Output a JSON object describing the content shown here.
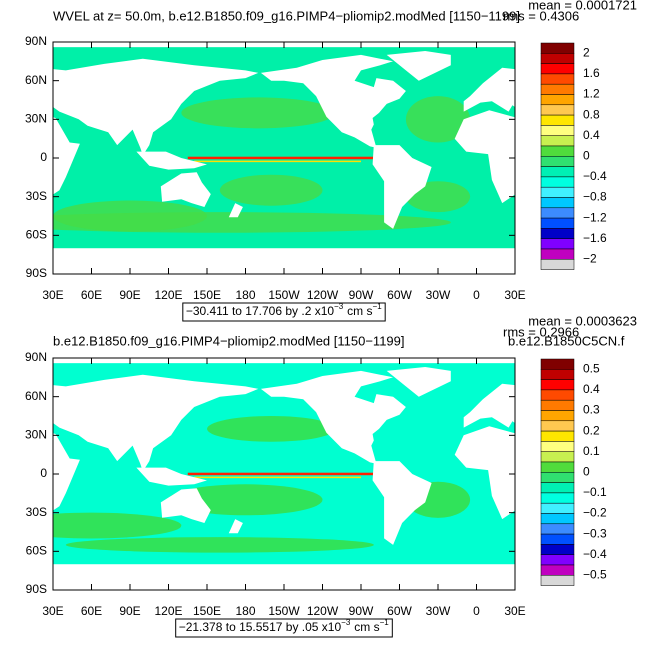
{
  "panels": [
    {
      "title": "WVEL at z=  50.0m, b.e12.B1850.f09_g16.PIMP4−pliomip2.modMed [1150−1199]",
      "right_title": null,
      "mean": "mean = 0.0001721",
      "rms": "rms = 0.4306",
      "lat_labels": [
        "90N",
        "60N",
        "30N",
        "0",
        "30S",
        "60S",
        "90S"
      ],
      "lon_labels": [
        "30E",
        "60E",
        "90E",
        "120E",
        "150E",
        "180",
        "150W",
        "120W",
        "90W",
        "60W",
        "30W",
        "0",
        "30E"
      ],
      "info": {
        "range": "−30.411 to 17.706 by .2 x10",
        "exp": "−3",
        "unit": "cm s",
        "unit_exp": "−1"
      },
      "colorbar_labels": [
        "2",
        "1.6",
        "1.2",
        "0.8",
        "0.4",
        "0",
        "−0.4",
        "−0.8",
        "−1.2",
        "−1.6",
        "−2"
      ]
    },
    {
      "title": "b.e12.B1850.f09_g16.PIMP4−pliomip2.modMed [1150−1199]",
      "right_title": "b.e12.B1850C5CN.f",
      "mean": "mean = 0.0003623",
      "rms": "rms = 0.2966",
      "lat_labels": [
        "90N",
        "60N",
        "30N",
        "0",
        "30S",
        "60S",
        "90S"
      ],
      "lon_labels": [
        "30E",
        "60E",
        "90E",
        "120E",
        "150E",
        "180",
        "150W",
        "120W",
        "90W",
        "60W",
        "30W",
        "0",
        "30E"
      ],
      "info": {
        "range": "−21.378 to 15.5517 by .05 x10",
        "exp": "−3",
        "unit": "cm s",
        "unit_exp": "−1"
      },
      "colorbar_labels": [
        "0.5",
        "0.4",
        "0.3",
        "0.2",
        "0.1",
        "0",
        "−0.1",
        "−0.2",
        "−0.3",
        "−0.4",
        "−0.5"
      ]
    }
  ]
}
